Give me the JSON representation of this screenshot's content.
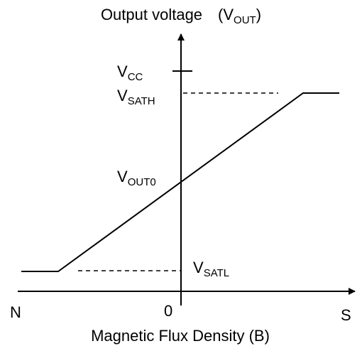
{
  "title": {
    "text": "Output voltage",
    "symbol": "(V",
    "sub": "OUT",
    "close": ")"
  },
  "x_axis_label": "Magnetic Flux Density (B)",
  "axis_ends": {
    "left": "N",
    "origin": "0",
    "right": "S"
  },
  "levels": {
    "vcc": {
      "symbol": "V",
      "sub": "CC"
    },
    "vsath": {
      "symbol": "V",
      "sub": "SATH"
    },
    "vout0": {
      "symbol": "V",
      "sub": "OUT0"
    },
    "vsatl": {
      "symbol": "V",
      "sub": "SATL"
    }
  }
}
